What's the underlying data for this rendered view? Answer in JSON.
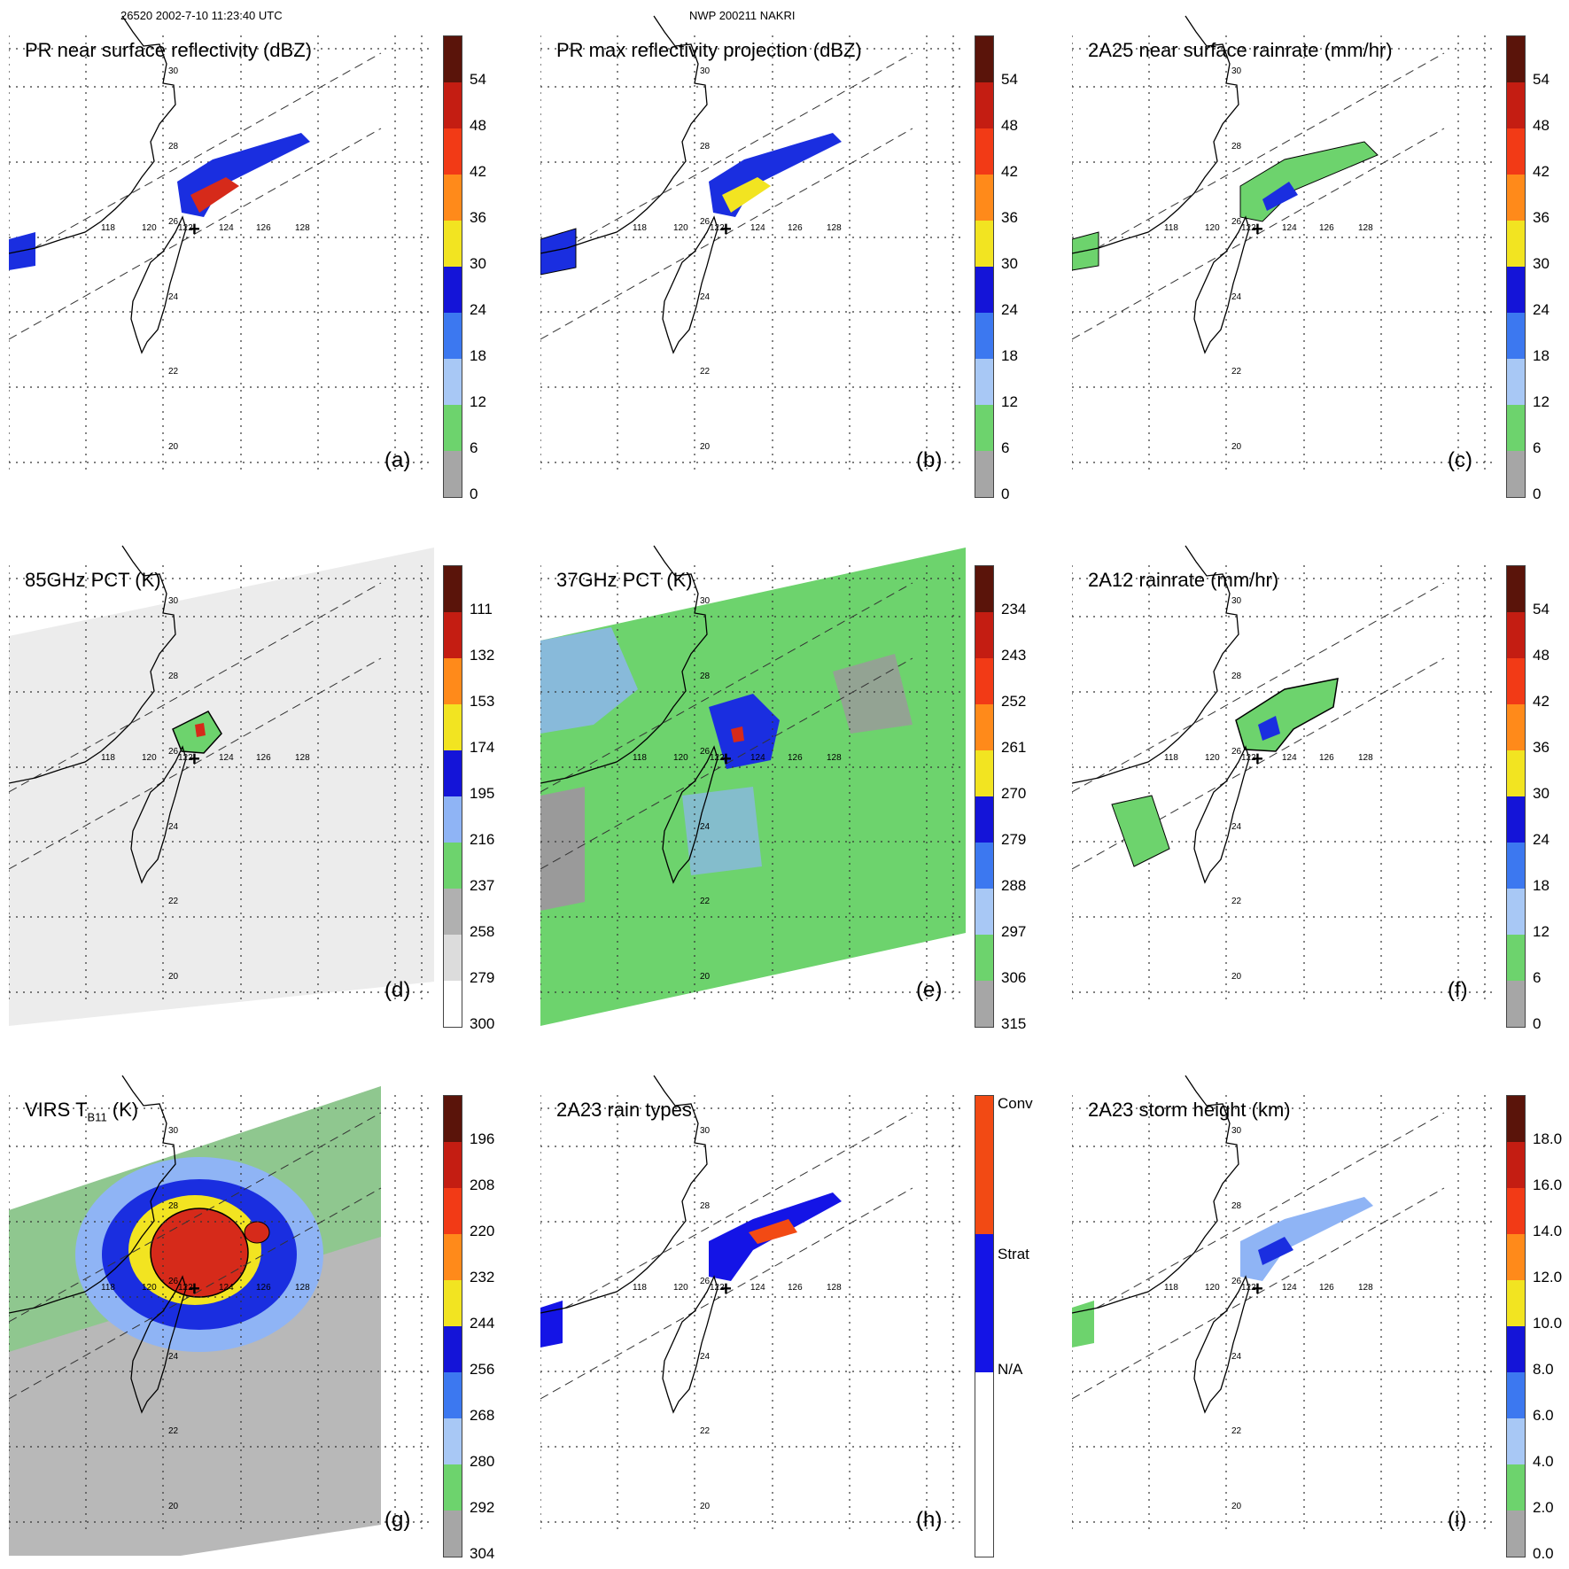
{
  "header": {
    "left": "26520 2002-7-10 11:23:40 UTC",
    "center": "NWP 200211 NAKRI"
  },
  "lon_labels": [
    "118",
    "120",
    "122",
    "124",
    "126",
    "128"
  ],
  "lat_labels": [
    "30",
    "28",
    "26",
    "24",
    "22",
    "20"
  ],
  "colors": {
    "green": "#6dd36d",
    "blue": "#1a2ee0",
    "lightblue": "#8fb4f5",
    "red": "#d62a1a",
    "yellow": "#f2e421",
    "gray": "#9a9a9a",
    "conv": "#f24a14",
    "strat": "#1414e6"
  },
  "panels": [
    {
      "id": "a",
      "title": "PR near surface reflectivity (dBZ)",
      "letter": "(a)",
      "ticks": [
        "54",
        "48",
        "42",
        "36",
        "30",
        "24",
        "18",
        "12",
        "6",
        "0"
      ]
    },
    {
      "id": "b",
      "title": "PR max reflectivity projection (dBZ)",
      "letter": "(b)",
      "ticks": [
        "54",
        "48",
        "42",
        "36",
        "30",
        "24",
        "18",
        "12",
        "6",
        "0"
      ]
    },
    {
      "id": "c",
      "title": "2A25 near surface rainrate (mm/hr)",
      "letter": "(c)",
      "ticks": [
        "54",
        "48",
        "42",
        "36",
        "30",
        "24",
        "18",
        "12",
        "6",
        "0"
      ]
    },
    {
      "id": "d",
      "title": "85GHz PCT (K)",
      "letter": "(d)",
      "ticks": [
        "111",
        "132",
        "153",
        "174",
        "195",
        "216",
        "237",
        "258",
        "279",
        "300"
      ]
    },
    {
      "id": "e",
      "title": "37GHz PCT (K)",
      "letter": "(e)",
      "ticks": [
        "234",
        "243",
        "252",
        "261",
        "270",
        "279",
        "288",
        "297",
        "306",
        "315"
      ]
    },
    {
      "id": "f",
      "title": "2A12 rainrate (mm/hr)",
      "letter": "(f)",
      "ticks": [
        "54",
        "48",
        "42",
        "36",
        "30",
        "24",
        "18",
        "12",
        "6",
        "0"
      ]
    },
    {
      "id": "g",
      "title_main": "VIRS T",
      "title_sub": "B11",
      "title_unit": " (K)",
      "letter": "(g)",
      "ticks": [
        "196",
        "208",
        "220",
        "232",
        "244",
        "256",
        "268",
        "280",
        "292",
        "304"
      ]
    },
    {
      "id": "h",
      "title": "2A23 rain types",
      "letter": "(h)",
      "ticks": [
        "Conv",
        "Strat",
        "N/A"
      ]
    },
    {
      "id": "i",
      "title": "2A23 storm height (km)",
      "letter": "(i)",
      "ticks": [
        "18.0",
        "16.0",
        "14.0",
        "12.0",
        "10.0",
        "8.0",
        "6.0",
        "4.0",
        "2.0",
        "0.0"
      ]
    }
  ]
}
